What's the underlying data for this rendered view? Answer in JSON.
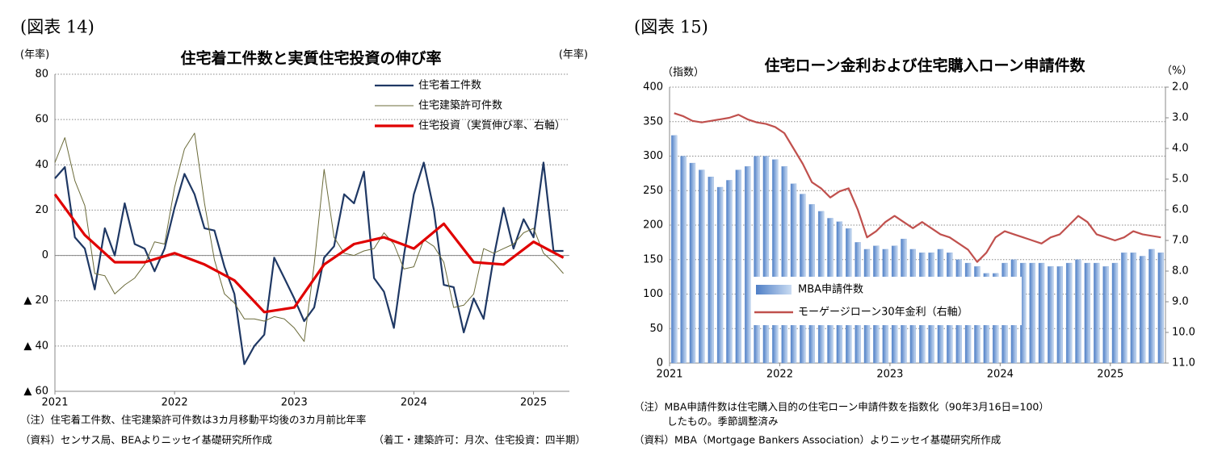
{
  "chart_data": [
    {
      "type": "line",
      "figure_label": "(図表 14)",
      "title": "住宅着工件数と実質住宅投資の伸び率",
      "y_unit": "(年率)",
      "y2_unit": "(年率)",
      "xlim": [
        2021,
        2025.3
      ],
      "xticks": [
        2021,
        2022,
        2023,
        2024,
        2025
      ],
      "ylim": [
        -60,
        80
      ],
      "yticks": [
        80,
        60,
        40,
        20,
        0,
        {
          "value": -20,
          "label": "▲ 20"
        },
        {
          "value": -40,
          "label": "▲ 40"
        },
        {
          "value": -60,
          "label": "▲ 60"
        }
      ],
      "grid": true,
      "legend": "upper right",
      "x": [
        2021,
        2021.083,
        2021.167,
        2021.25,
        2021.333,
        2021.417,
        2021.5,
        2021.583,
        2021.667,
        2021.75,
        2021.833,
        2021.917,
        2022,
        2022.083,
        2022.167,
        2022.25,
        2022.333,
        2022.417,
        2022.5,
        2022.583,
        2022.667,
        2022.75,
        2022.833,
        2022.917,
        2023,
        2023.083,
        2023.167,
        2023.25,
        2023.333,
        2023.417,
        2023.5,
        2023.583,
        2023.667,
        2023.75,
        2023.833,
        2023.917,
        2024,
        2024.083,
        2024.167,
        2024.25,
        2024.333,
        2024.417,
        2024.5,
        2024.583,
        2024.667,
        2024.75,
        2024.833,
        2024.917,
        2025,
        2025.083,
        2025.167,
        2025.25
      ],
      "series": [
        {
          "name": "住宅着工件数",
          "color": "#1f3864",
          "width": 2.2,
          "values": [
            34,
            39,
            8,
            3,
            -15,
            12,
            0,
            23,
            5,
            3,
            -7,
            3,
            21,
            36,
            27,
            12,
            11,
            -5,
            -17,
            -48,
            -40,
            -35,
            -1,
            -10,
            -19,
            -29,
            -23,
            -1,
            4,
            27,
            23,
            37,
            -10,
            -16,
            -32,
            0,
            27,
            41,
            20,
            -13,
            -14,
            -34,
            -19,
            -28,
            -1,
            21,
            3,
            16,
            8,
            41,
            2,
            2
          ]
        },
        {
          "name": "住宅建築許可件数",
          "color": "#6b6b3a",
          "width": 1,
          "values": [
            41,
            52,
            33,
            22,
            -8,
            -9,
            -17,
            -13,
            -10,
            -4,
            6,
            5,
            30,
            47,
            54,
            23,
            -2,
            -17,
            -21,
            -28,
            -28,
            -29,
            -27,
            -28,
            -32,
            -38,
            -4,
            38,
            8,
            1,
            0,
            2,
            3,
            10,
            5,
            -6,
            -5,
            7,
            4,
            -3,
            -23,
            -22,
            -17,
            3,
            1,
            3,
            5,
            10,
            12,
            1,
            -3,
            -8
          ]
        },
        {
          "name": "住宅投資（実質伸び率、右軸）",
          "color": "#e00000",
          "width": 3.2,
          "x": [
            2021,
            2021.25,
            2021.5,
            2021.75,
            2022,
            2022.25,
            2022.5,
            2022.75,
            2023,
            2023.25,
            2023.5,
            2023.75,
            2024,
            2024.25,
            2024.5,
            2024.75,
            2025,
            2025.25
          ],
          "values": [
            27,
            9,
            -3,
            -3,
            1,
            -4,
            -11,
            -25,
            -23,
            -4,
            5,
            8,
            3,
            14,
            -3,
            -4,
            6,
            -1
          ]
        }
      ],
      "notes": [
        "（注）住宅着工件数、住宅建築許可件数は3カ月移動平均後の3カ月前比年率",
        "（資料）センサス局、BEAよりニッセイ基礎研究所作成",
        "（着工・建築許可：月次、住宅投資：四半期）"
      ]
    },
    {
      "type": "bar",
      "figure_label": "(図表 15)",
      "title": "住宅ローン金利および住宅購入ローン申請件数",
      "y_unit": "（指数）",
      "y2_unit": "（%）",
      "categories": [
        "2021",
        null,
        null,
        null,
        null,
        null,
        null,
        null,
        null,
        null,
        null,
        null,
        "2022",
        null,
        null,
        null,
        null,
        null,
        null,
        null,
        null,
        null,
        null,
        null,
        "2023",
        null,
        null,
        null,
        null,
        null,
        null,
        null,
        null,
        null,
        null,
        null,
        "2024",
        null,
        null,
        null,
        null,
        null,
        null,
        null,
        null,
        null,
        null,
        null,
        "2025",
        null,
        null,
        null,
        null,
        null
      ],
      "ylim": [
        0,
        400
      ],
      "yticks": [
        0,
        50,
        100,
        150,
        200,
        250,
        300,
        350,
        400
      ],
      "y2lim": [
        11,
        2
      ],
      "y2ticks": [
        {
          "value": 2,
          "label": "2.0"
        },
        {
          "value": 3,
          "label": "3.0"
        },
        {
          "value": 4,
          "label": "4.0"
        },
        {
          "value": 5,
          "label": "5.0"
        },
        {
          "value": 6,
          "label": "6.0"
        },
        {
          "value": 7,
          "label": "7.0"
        },
        {
          "value": 8,
          "label": "8.0"
        },
        {
          "value": 9,
          "label": "9.0"
        },
        {
          "value": 10,
          "label": "10.0"
        },
        {
          "value": 11,
          "label": "11.0"
        }
      ],
      "grid": true,
      "legend": "lower left",
      "series": [
        {
          "name": "MBA申請件数",
          "color": "#7fa4d6",
          "type": "bar",
          "values": [
            330,
            300,
            290,
            280,
            270,
            255,
            265,
            280,
            285,
            300,
            300,
            295,
            285,
            260,
            245,
            230,
            220,
            210,
            205,
            195,
            175,
            165,
            170,
            165,
            170,
            180,
            165,
            160,
            160,
            165,
            160,
            150,
            145,
            140,
            130,
            130,
            145,
            150,
            145,
            145,
            145,
            140,
            140,
            145,
            150,
            145,
            145,
            140,
            145,
            160,
            160,
            155,
            165,
            160
          ]
        },
        {
          "name": "モーゲージローン30年金利（右軸）",
          "color": "#c0504d",
          "type": "line",
          "axis": "y2",
          "values": [
            2.85,
            2.95,
            3.1,
            3.15,
            3.1,
            3.05,
            3.0,
            2.9,
            3.05,
            3.15,
            3.2,
            3.3,
            3.5,
            4.0,
            4.5,
            5.1,
            5.3,
            5.6,
            5.4,
            5.3,
            6.0,
            6.9,
            6.7,
            6.4,
            6.2,
            6.4,
            6.6,
            6.4,
            6.6,
            6.8,
            6.9,
            7.1,
            7.3,
            7.7,
            7.4,
            6.9,
            6.7,
            6.8,
            6.9,
            7.0,
            7.1,
            6.9,
            6.8,
            6.5,
            6.2,
            6.4,
            6.8,
            6.9,
            7.0,
            6.9,
            6.7,
            6.8,
            6.85,
            6.9
          ]
        }
      ],
      "notes": [
        "（注）MBA申請件数は住宅購入目的の住宅ローン申請件数を指数化（90年3月16日=100）",
        "したもの。季節調整済み",
        "（資料）MBA（Mortgage Bankers Association）よりニッセイ基礎研究所作成"
      ]
    }
  ]
}
